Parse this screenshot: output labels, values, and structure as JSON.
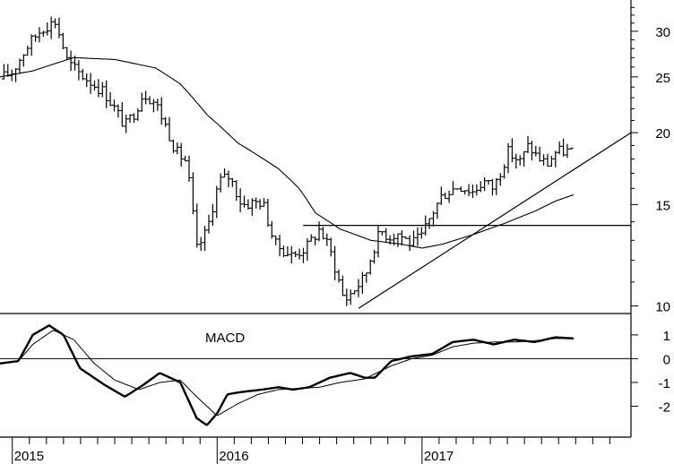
{
  "chart_data": [
    {
      "type": "ohlc",
      "panel": "price",
      "scale": "log",
      "ylim": [
        9.7,
        34
      ],
      "y_ticks": [
        "30",
        "25",
        "20",
        "15",
        "10"
      ],
      "y_tick_values": [
        30,
        25,
        20,
        15,
        10
      ],
      "x_ticks": [
        "2015",
        "2016",
        "2017"
      ],
      "x_tick_dates": [
        2015.0,
        2016.0,
        2017.0
      ],
      "xlim": [
        2014.94,
        2018.02
      ],
      "bars_anchor_t": [
        2014.94,
        2015.0,
        2015.08,
        2015.15,
        2015.21,
        2015.27,
        2015.33,
        2015.45,
        2015.55,
        2015.6,
        2015.64,
        2015.7,
        2015.8,
        2015.85,
        2015.9,
        2015.95,
        2016.01,
        2016.06,
        2016.12,
        2016.22,
        2016.28,
        2016.37,
        2016.44,
        2016.5,
        2016.55,
        2016.62,
        2016.72,
        2016.77,
        2016.8,
        2016.84,
        2016.88,
        2016.95,
        2017.0,
        2017.05,
        2017.1,
        2017.18,
        2017.25,
        2017.3,
        2017.35,
        2017.42,
        2017.48,
        2017.52,
        2017.56,
        2017.61,
        2017.65,
        2017.7,
        2017.74
      ],
      "bars_anchor_close": [
        24.8,
        25.5,
        28.5,
        30.5,
        31.2,
        26.5,
        25.3,
        23.5,
        20.5,
        21.8,
        23.5,
        22.5,
        18.5,
        17.8,
        12.5,
        13.5,
        16.5,
        16.8,
        15.0,
        15.2,
        12.8,
        12.2,
        12.7,
        13.6,
        12.5,
        10.2,
        11.2,
        12.8,
        13.5,
        13.2,
        13.4,
        12.8,
        13.2,
        14.5,
        15.6,
        16.2,
        15.8,
        16.5,
        16.0,
        18.5,
        17.8,
        19.0,
        18.2,
        17.6,
        18.5,
        18.6,
        18.5
      ],
      "moving_average_anchor_t": [
        2014.94,
        2015.1,
        2015.3,
        2015.5,
        2015.7,
        2015.82,
        2015.95,
        2016.1,
        2016.3,
        2016.4,
        2016.48,
        2016.6,
        2016.75,
        2016.9,
        2017.0,
        2017.1,
        2017.25,
        2017.4,
        2017.55,
        2017.65,
        2017.74
      ],
      "moving_average_anchor_value": [
        25.0,
        25.6,
        27.0,
        26.8,
        25.9,
        24.3,
        21.5,
        19.2,
        17.3,
        16.0,
        14.5,
        13.6,
        13.0,
        12.8,
        12.6,
        12.8,
        13.3,
        13.9,
        14.6,
        15.2,
        15.6
      ],
      "horizontal_level": 13.8,
      "horizontal_level_range": [
        2016.42,
        2018.02
      ],
      "trendline": [
        {
          "t": 2016.69,
          "v": 9.9
        },
        {
          "t": 2018.02,
          "v": 20.0
        }
      ]
    },
    {
      "type": "line",
      "panel": "indicator",
      "label": "MACD",
      "ylim": [
        -3.3,
        1.9
      ],
      "y_ticks": [
        "1",
        "0",
        "-1",
        "-2"
      ],
      "y_tick_values": [
        1,
        0,
        -1,
        -2
      ],
      "zero_line": true,
      "series": [
        {
          "t": [
            2014.94,
            2015.03,
            2015.1,
            2015.18,
            2015.25,
            2015.33,
            2015.45,
            2015.55,
            2015.64,
            2015.72,
            2015.82,
            2015.9,
            2015.95,
            2016.0,
            2016.05,
            2016.12,
            2016.22,
            2016.3,
            2016.37,
            2016.45,
            2016.55,
            2016.65,
            2016.72,
            2016.77,
            2016.85,
            2016.95,
            2017.05,
            2017.15,
            2017.25,
            2017.35,
            2017.45,
            2017.55,
            2017.65,
            2017.74
          ],
          "v": [
            -0.2,
            -0.1,
            1.0,
            1.4,
            1.0,
            -0.4,
            -1.1,
            -1.6,
            -1.1,
            -0.6,
            -1.0,
            -2.5,
            -2.8,
            -2.3,
            -1.5,
            -1.4,
            -1.3,
            -1.2,
            -1.3,
            -1.2,
            -0.8,
            -0.6,
            -0.8,
            -0.8,
            -0.1,
            0.1,
            0.2,
            0.7,
            0.8,
            0.6,
            0.8,
            0.7,
            0.9,
            0.85
          ]
        },
        {
          "t": [
            2014.94,
            2015.03,
            2015.1,
            2015.2,
            2015.3,
            2015.4,
            2015.5,
            2015.62,
            2015.72,
            2015.82,
            2015.9,
            2016.0,
            2016.1,
            2016.2,
            2016.3,
            2016.4,
            2016.5,
            2016.6,
            2016.72,
            2016.85,
            2016.95,
            2017.05,
            2017.15,
            2017.25,
            2017.35,
            2017.45,
            2017.55,
            2017.65,
            2017.74
          ],
          "v": [
            -0.2,
            -0.1,
            0.6,
            1.2,
            0.8,
            -0.2,
            -0.9,
            -1.3,
            -1.0,
            -0.9,
            -1.6,
            -2.4,
            -1.9,
            -1.5,
            -1.3,
            -1.25,
            -1.2,
            -1.0,
            -0.85,
            -0.3,
            0.0,
            0.15,
            0.5,
            0.65,
            0.7,
            0.7,
            0.75,
            0.85,
            0.85
          ]
        }
      ]
    }
  ]
}
